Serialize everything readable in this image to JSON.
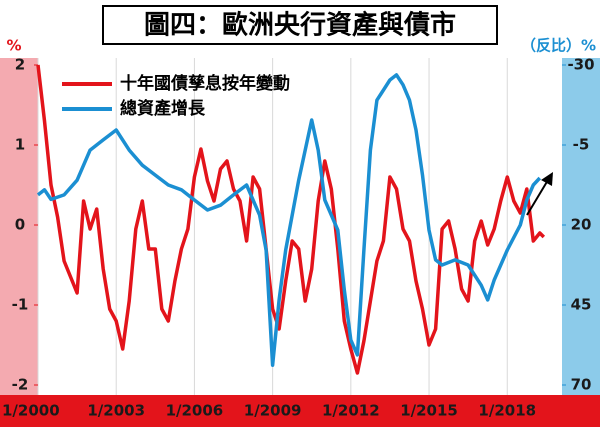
{
  "chart_data": {
    "type": "line",
    "title": "圖四：歐洲央行資產與債市",
    "y_label": "%",
    "y2_label": "（反比）%",
    "xlim": [
      2000,
      2020.1
    ],
    "xticks": [
      {
        "value": 2000,
        "label": "1/2000"
      },
      {
        "value": 2003,
        "label": "1/2003"
      },
      {
        "value": 2006,
        "label": "1/2006"
      },
      {
        "value": 2009,
        "label": "1/2009"
      },
      {
        "value": 2012,
        "label": "1/2012"
      },
      {
        "value": 2015,
        "label": "1/2015"
      },
      {
        "value": 2018,
        "label": "1/2018"
      }
    ],
    "ylim": [
      -2,
      2
    ],
    "yticks": [
      2,
      1,
      0,
      -1,
      -2
    ],
    "y2lim": [
      -30,
      70
    ],
    "y2ticks": [
      -30,
      -5,
      20,
      45,
      70
    ],
    "y2_inverted": true,
    "xgrid": true,
    "legend": "upper left",
    "series": [
      {
        "name": "十年國債孳息按年變動",
        "color": "#e3141b",
        "x": [
          2000,
          2000.25,
          2000.5,
          2000.75,
          2001,
          2001.5,
          2001.75,
          2002,
          2002.25,
          2002.5,
          2002.75,
          2003,
          2003.25,
          2003.5,
          2003.75,
          2004,
          2004.25,
          2004.5,
          2004.75,
          2005,
          2005.25,
          2005.5,
          2005.75,
          2006,
          2006.25,
          2006.5,
          2006.75,
          2007,
          2007.25,
          2007.5,
          2007.75,
          2008,
          2008.25,
          2008.5,
          2008.75,
          2009,
          2009.25,
          2009.5,
          2009.75,
          2010,
          2010.25,
          2010.5,
          2010.75,
          2011,
          2011.25,
          2011.5,
          2011.75,
          2012,
          2012.25,
          2012.5,
          2012.75,
          2013,
          2013.25,
          2013.5,
          2013.75,
          2014,
          2014.25,
          2014.5,
          2014.75,
          2015,
          2015.25,
          2015.5,
          2015.75,
          2016,
          2016.25,
          2016.5,
          2016.75,
          2017,
          2017.25,
          2017.5,
          2017.75,
          2018,
          2018.25,
          2018.5,
          2018.75,
          2019,
          2019.25,
          2019.4
        ],
        "values": [
          2.0,
          1.3,
          0.5,
          0.1,
          -0.45,
          -0.85,
          0.3,
          -0.05,
          0.2,
          -0.55,
          -1.05,
          -1.2,
          -1.55,
          -0.95,
          -0.05,
          0.3,
          -0.3,
          -0.3,
          -1.05,
          -1.2,
          -0.7,
          -0.3,
          -0.05,
          0.6,
          0.95,
          0.55,
          0.3,
          0.7,
          0.8,
          0.45,
          0.3,
          -0.2,
          0.6,
          0.45,
          -0.3,
          -1.05,
          -1.3,
          -0.7,
          -0.2,
          -0.3,
          -0.95,
          -0.55,
          0.3,
          0.8,
          0.45,
          -0.3,
          -1.2,
          -1.55,
          -1.85,
          -1.45,
          -0.95,
          -0.45,
          -0.2,
          0.6,
          0.45,
          -0.05,
          -0.2,
          -0.7,
          -1.05,
          -1.5,
          -1.3,
          -0.05,
          0.05,
          -0.3,
          -0.8,
          -0.95,
          -0.2,
          0.05,
          -0.25,
          -0.05,
          0.3,
          0.6,
          0.3,
          0.15,
          0.45,
          -0.2,
          -0.1,
          -0.15
        ]
      },
      {
        "name": "總資產增長",
        "color": "#1b8fd2",
        "axis": "y2",
        "x": [
          2000,
          2000.25,
          2000.5,
          2001,
          2001.5,
          2002,
          2002.5,
          2003,
          2003.5,
          2004,
          2004.5,
          2005,
          2005.5,
          2006,
          2006.5,
          2007,
          2007.5,
          2008,
          2008.5,
          2008.75,
          2009,
          2009.25,
          2009.5,
          2010,
          2010.5,
          2010.75,
          2011,
          2011.5,
          2011.75,
          2012,
          2012.25,
          2012.5,
          2012.75,
          2013,
          2013.5,
          2013.75,
          2014,
          2014.25,
          2014.5,
          2014.75,
          2015,
          2015.25,
          2015.5,
          2016,
          2016.5,
          2017,
          2017.25,
          2017.5,
          2018,
          2018.5,
          2018.75,
          2019,
          2019.25
        ],
        "values": [
          10.6,
          9,
          12,
          10.6,
          6,
          -3.4,
          -6.6,
          -9.7,
          -3.4,
          1.3,
          4.4,
          7.5,
          9,
          12.2,
          15.3,
          13.8,
          10.6,
          7.5,
          16.9,
          27.8,
          63.8,
          43.4,
          27.8,
          6,
          -12.8,
          -3.4,
          12.2,
          21.6,
          40.3,
          55.9,
          60.6,
          27.8,
          -3.4,
          -19,
          -25.3,
          -26.9,
          -23.8,
          -19,
          -9.7,
          4.4,
          21.6,
          30.9,
          32.5,
          30.9,
          32.5,
          38.8,
          43.4,
          37.2,
          27.8,
          20,
          12.2,
          7.5,
          5.3
        ]
      }
    ]
  }
}
